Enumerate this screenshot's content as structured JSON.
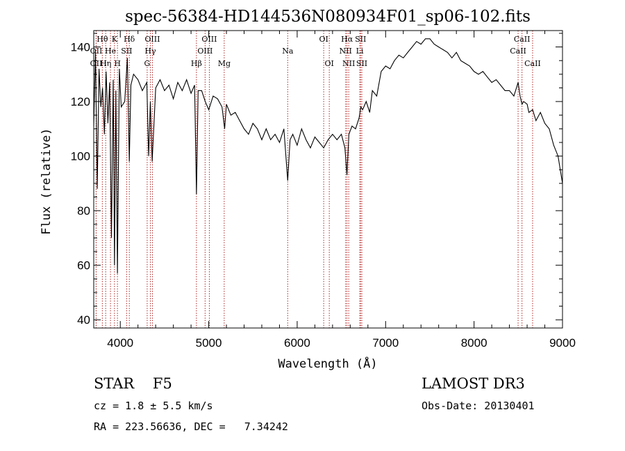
{
  "chart_data": {
    "type": "line",
    "title": "spec-56384-HD144536N080934F01_sp06-102.fits",
    "xlabel": "Wavelength (Å)",
    "ylabel": "Flux (relative)",
    "xlim": [
      3700,
      9000
    ],
    "ylim": [
      37,
      146
    ],
    "x_ticks": [
      4000,
      5000,
      6000,
      7000,
      8000,
      9000
    ],
    "y_ticks": [
      40,
      60,
      80,
      100,
      120,
      140
    ],
    "series": [
      {
        "name": "spectrum",
        "x": [
          3700,
          3720,
          3740,
          3760,
          3780,
          3800,
          3820,
          3840,
          3860,
          3880,
          3900,
          3920,
          3935,
          3950,
          3968,
          3990,
          4010,
          4050,
          4080,
          4102,
          4120,
          4150,
          4200,
          4250,
          4300,
          4320,
          4340,
          4360,
          4400,
          4450,
          4500,
          4550,
          4600,
          4650,
          4700,
          4750,
          4800,
          4840,
          4861,
          4880,
          4920,
          4960,
          5000,
          5050,
          5100,
          5150,
          5180,
          5200,
          5250,
          5300,
          5350,
          5400,
          5450,
          5500,
          5550,
          5600,
          5650,
          5700,
          5750,
          5800,
          5850,
          5893,
          5920,
          5950,
          6000,
          6050,
          6100,
          6150,
          6200,
          6250,
          6300,
          6350,
          6400,
          6450,
          6500,
          6540,
          6563,
          6585,
          6620,
          6660,
          6700,
          6720,
          6740,
          6780,
          6820,
          6850,
          6900,
          6950,
          7000,
          7050,
          7100,
          7150,
          7200,
          7250,
          7300,
          7350,
          7400,
          7450,
          7500,
          7550,
          7600,
          7650,
          7700,
          7750,
          7800,
          7850,
          7900,
          7950,
          8000,
          8050,
          8100,
          8150,
          8200,
          8250,
          8300,
          8350,
          8400,
          8450,
          8498,
          8520,
          8542,
          8560,
          8600,
          8620,
          8662,
          8700,
          8750,
          8800,
          8850,
          8900,
          8950,
          9000
        ],
        "y": [
          111,
          138,
          88,
          132,
          118,
          125,
          108,
          131,
          112,
          127,
          70,
          128,
          60,
          124,
          57,
          132,
          118,
          120,
          136,
          98,
          126,
          130,
          128,
          124,
          127,
          100,
          120,
          98,
          125,
          128,
          124,
          126,
          121,
          127,
          124,
          128,
          123,
          126,
          86,
          124,
          124,
          120,
          117,
          122,
          121,
          118,
          110,
          119,
          115,
          116,
          113,
          110,
          108,
          112,
          110,
          106,
          110,
          106,
          108,
          105,
          110,
          91,
          106,
          108,
          104,
          110,
          106,
          103,
          107,
          105,
          103,
          106,
          108,
          106,
          108,
          103,
          93,
          108,
          111,
          110,
          114,
          118,
          117,
          120,
          116,
          124,
          122,
          131,
          133,
          132,
          135,
          137,
          136,
          138,
          140,
          142,
          141,
          143,
          143,
          141,
          140,
          139,
          138,
          136,
          138,
          135,
          134,
          133,
          131,
          130,
          131,
          129,
          127,
          128,
          126,
          124,
          124,
          122,
          127,
          122,
          119,
          120,
          119,
          116,
          117,
          113,
          116,
          112,
          110,
          104,
          100,
          90
        ]
      }
    ],
    "spectral_lines": [
      {
        "name": "Hθ",
        "wavelength": 3797,
        "row": 0
      },
      {
        "name": "OII",
        "wavelength": 3727,
        "row": 1
      },
      {
        "name": "OII",
        "wavelength": 3727,
        "row": 2
      },
      {
        "name": "Hη",
        "wavelength": 3835,
        "row": 2
      },
      {
        "name": "He",
        "wavelength": 3889,
        "row": 1
      },
      {
        "name": "K",
        "wavelength": 3934,
        "row": 0
      },
      {
        "name": "H",
        "wavelength": 3968,
        "row": 2
      },
      {
        "name": "SII",
        "wavelength": 4072,
        "row": 1
      },
      {
        "name": "Hδ",
        "wavelength": 4102,
        "row": 0
      },
      {
        "name": "OIII",
        "wavelength": 4363,
        "row": 0
      },
      {
        "name": "Hγ",
        "wavelength": 4340,
        "row": 1
      },
      {
        "name": "G",
        "wavelength": 4304,
        "row": 2
      },
      {
        "name": "Hβ",
        "wavelength": 4861,
        "row": 2
      },
      {
        "name": "OIII",
        "wavelength": 5007,
        "row": 0
      },
      {
        "name": "OIII",
        "wavelength": 4959,
        "row": 1
      },
      {
        "name": "Mg",
        "wavelength": 5175,
        "row": 2
      },
      {
        "name": "Na",
        "wavelength": 5893,
        "row": 1
      },
      {
        "name": "OI",
        "wavelength": 6300,
        "row": 0
      },
      {
        "name": "OI",
        "wavelength": 6363,
        "row": 2
      },
      {
        "name": "Hα",
        "wavelength": 6563,
        "row": 0
      },
      {
        "name": "NII",
        "wavelength": 6548,
        "row": 1
      },
      {
        "name": "NII",
        "wavelength": 6583,
        "row": 2
      },
      {
        "name": "SII",
        "wavelength": 6717,
        "row": 0
      },
      {
        "name": "Li",
        "wavelength": 6708,
        "row": 1
      },
      {
        "name": "SII",
        "wavelength": 6731,
        "row": 2
      },
      {
        "name": "CaII",
        "wavelength": 8542,
        "row": 0
      },
      {
        "name": "CaII",
        "wavelength": 8498,
        "row": 1
      },
      {
        "name": "CaII",
        "wavelength": 8662,
        "row": 2
      }
    ],
    "line_color": "#000000",
    "marker_color": "#b22222"
  },
  "info": {
    "class_label": "STAR    F5",
    "survey": "LAMOST DR3",
    "cz": "cz = 1.8 ± 5.5 km/s",
    "obs_date": "Obs-Date: 20130401",
    "coords": "RA = 223.56636, DEC =   7.34242"
  }
}
